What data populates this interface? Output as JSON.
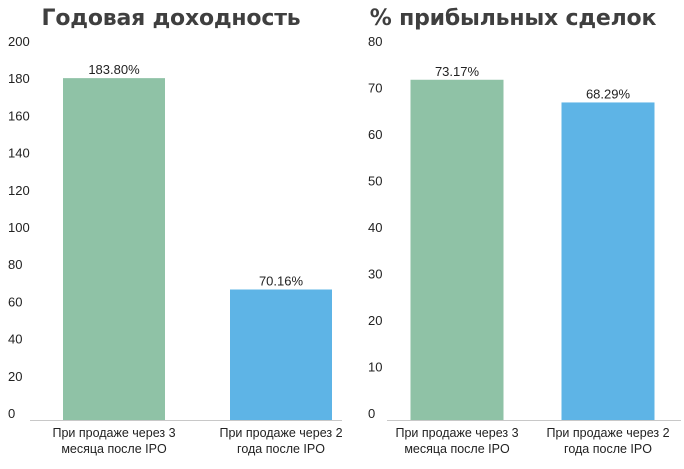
{
  "colors": {
    "series_1": "#8fc2a6",
    "series_2": "#5eb4e6",
    "axis": "#c8c8c8",
    "text": "#222222",
    "title": "#3f3f3f"
  },
  "chart_data": [
    {
      "type": "bar",
      "title": "Годовая доходность",
      "categories": [
        "При продаже через 3\nмесяца после IPO",
        "При продаже через 2\nгода после IPO"
      ],
      "values": [
        183.8,
        70.16
      ],
      "data_labels": [
        "183.80%",
        "70.16%"
      ],
      "ylim": [
        0,
        200
      ],
      "yticks": [
        0,
        20,
        40,
        60,
        80,
        100,
        120,
        140,
        160,
        180,
        200
      ],
      "grid": false,
      "xlabel": "",
      "ylabel": ""
    },
    {
      "type": "bar",
      "title": "% прибыльных сделок",
      "categories": [
        "При продаже через 3\nмесяца после IPO",
        "При продаже через 2\nгода после IPO"
      ],
      "values": [
        73.17,
        68.29
      ],
      "data_labels": [
        "73.17%",
        "68.29%"
      ],
      "ylim": [
        0,
        80
      ],
      "yticks": [
        0,
        10,
        20,
        30,
        40,
        50,
        60,
        70,
        80
      ],
      "grid": false,
      "xlabel": "",
      "ylabel": ""
    }
  ]
}
